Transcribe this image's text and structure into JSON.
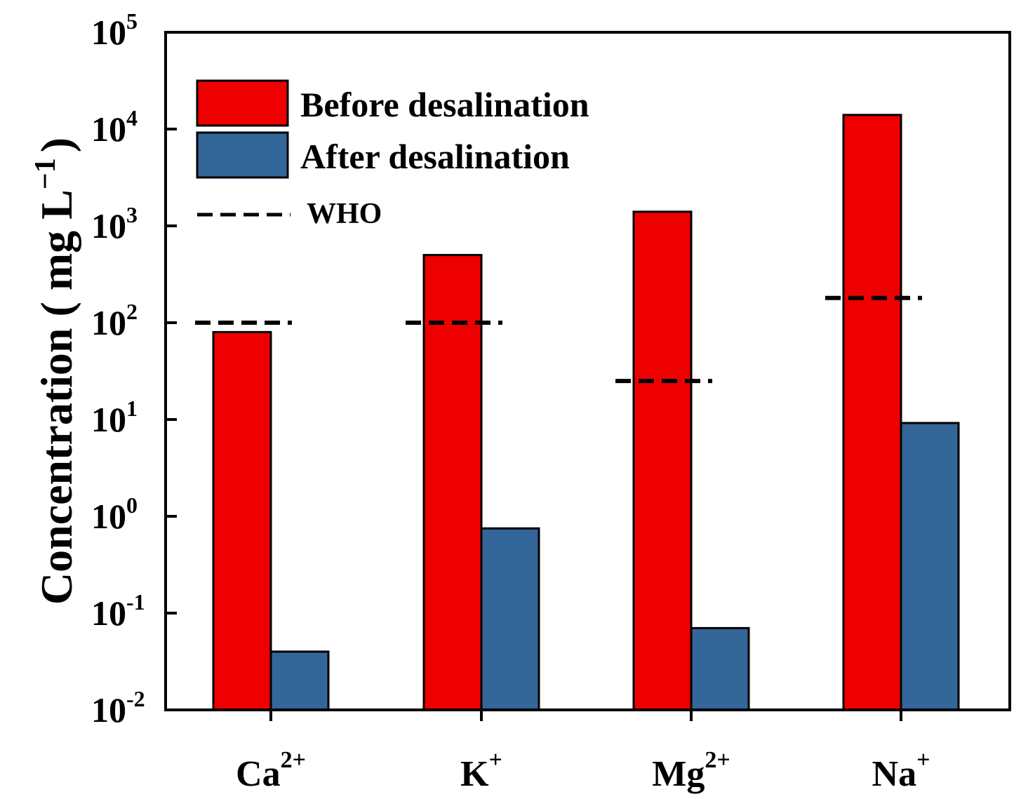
{
  "chart_data": {
    "type": "bar",
    "scale": "log",
    "ylabel": {
      "base": "Concentration ( mg L",
      "exponent": "−1",
      "close": ")"
    },
    "ylim": [
      0.01,
      100000
    ],
    "yticks": [
      {
        "base": "10",
        "exp": "-2",
        "value": 0.01
      },
      {
        "base": "10",
        "exp": "-1",
        "value": 0.1
      },
      {
        "base": "10",
        "exp": "0",
        "value": 1
      },
      {
        "base": "10",
        "exp": "1",
        "value": 10
      },
      {
        "base": "10",
        "exp": "2",
        "value": 100
      },
      {
        "base": "10",
        "exp": "3",
        "value": 1000
      },
      {
        "base": "10",
        "exp": "4",
        "value": 10000
      },
      {
        "base": "10",
        "exp": "5",
        "value": 100000
      }
    ],
    "categories": [
      {
        "base": "Ca",
        "sup": "2+"
      },
      {
        "base": "K",
        "sup": "+"
      },
      {
        "base": "Mg",
        "sup": "2+"
      },
      {
        "base": "Na",
        "sup": "+"
      }
    ],
    "series": [
      {
        "name": "Before desalination",
        "color": "#ee0000",
        "values": [
          80,
          500,
          1400,
          14000
        ]
      },
      {
        "name": "After desalination",
        "color": "#336699",
        "values": [
          0.04,
          0.75,
          0.07,
          9.2
        ]
      }
    ],
    "who": {
      "name": "WHO",
      "values": [
        100,
        100,
        25,
        180
      ]
    },
    "legend_position": "top-left"
  }
}
